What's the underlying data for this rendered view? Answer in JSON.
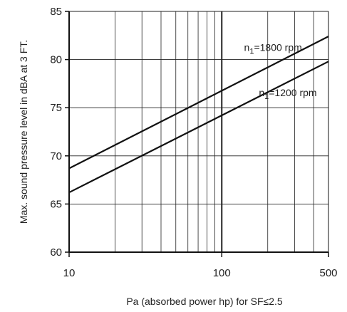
{
  "chart_data": {
    "type": "line",
    "xscale": "log",
    "xlim": [
      10,
      500
    ],
    "ylim": [
      60,
      85
    ],
    "xticks": [
      10,
      100,
      500
    ],
    "xtick_labels": [
      "10",
      "100",
      "500"
    ],
    "yticks": [
      60,
      65,
      70,
      75,
      80,
      85
    ],
    "ytick_labels": [
      "60",
      "65",
      "70",
      "75",
      "80",
      "85"
    ],
    "xlabel": "Pa (absorbed power hp) for SF≤2.5",
    "ylabel": "Max. sound pressure level in dBA at 3 FT.",
    "grid": true,
    "series": [
      {
        "name": "n1=1800 rpm",
        "label_main": "n",
        "label_sub": "1",
        "label_rest": "=1800 rpm",
        "x": [
          10,
          500
        ],
        "y": [
          68.7,
          82.4
        ]
      },
      {
        "name": "n1=1200 rpm",
        "label_main": "n",
        "label_sub": "1",
        "label_rest": "=1200 rpm",
        "x": [
          10,
          500
        ],
        "y": [
          66.2,
          79.8
        ]
      }
    ]
  }
}
